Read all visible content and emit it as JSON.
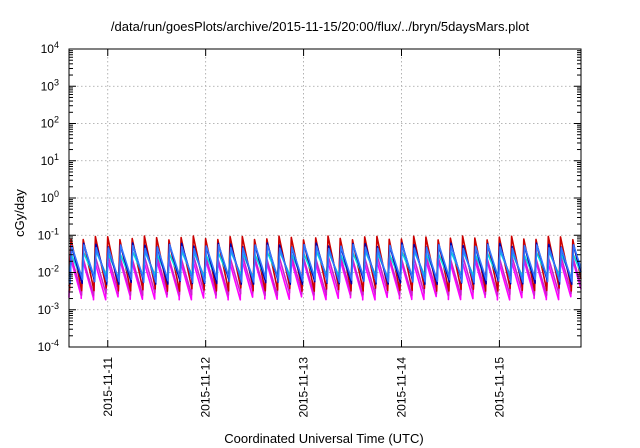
{
  "chart_data": {
    "type": "line",
    "title": "/data/run/goesPlots/archive/2015-11-15/20:00/flux/../bryn/5daysMars.plot",
    "xlabel": "Coordinated Universal Time (UTC)",
    "ylabel": "cGy/day",
    "y_scale": "log",
    "ylim": [
      0.0001,
      10000
    ],
    "y_ticks": [
      {
        "value": 0.0001,
        "base": "10",
        "exp": "-4"
      },
      {
        "value": 0.001,
        "base": "10",
        "exp": "-3"
      },
      {
        "value": 0.01,
        "base": "10",
        "exp": "-2"
      },
      {
        "value": 0.1,
        "base": "10",
        "exp": "-1"
      },
      {
        "value": 1,
        "base": "10",
        "exp": "0"
      },
      {
        "value": 10,
        "base": "10",
        "exp": "1"
      },
      {
        "value": 100,
        "base": "10",
        "exp": "2"
      },
      {
        "value": 1000,
        "base": "10",
        "exp": "3"
      },
      {
        "value": 10000,
        "base": "10",
        "exp": "4"
      }
    ],
    "xlim": [
      "2015-11-10 14:30",
      "2015-11-15 20:00"
    ],
    "x_ticks": [
      "2015-11-11",
      "2015-11-12",
      "2015-11-13",
      "2015-11-14",
      "2015-11-15"
    ],
    "grid": true,
    "legend": "none",
    "series": [
      {
        "color": "#ff00ff",
        "peak": 0.022,
        "trough": 0.0021
      },
      {
        "color": "#cc22cc",
        "peak": 0.028,
        "trough": 0.0028
      },
      {
        "color": "#cc0000",
        "peak": 0.085,
        "trough": 0.0036
      },
      {
        "color": "#00dddd",
        "peak": 0.035,
        "trough": 0.0075
      },
      {
        "color": "#0000aa",
        "peak": 0.055,
        "trough": 0.0055
      },
      {
        "color": "#3377ff",
        "peak": 0.05,
        "trough": 0.0062
      }
    ],
    "cycle_hours": 3,
    "dips": [
      {
        "time": "2015-11-14 08:00",
        "trough": 0.0026
      },
      {
        "time": "2015-11-15 02:00",
        "trough": 0.0024
      }
    ]
  }
}
